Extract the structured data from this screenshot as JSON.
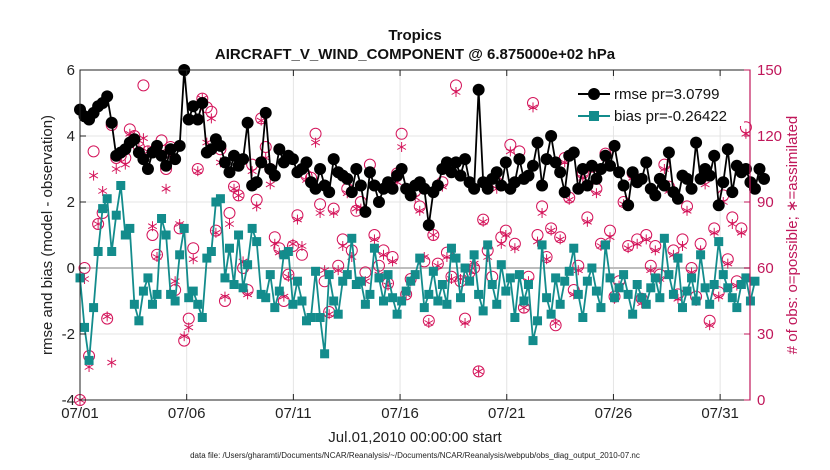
{
  "chart_data": {
    "type": "line",
    "title": "Tropics",
    "subtitle": "AIRCRAFT_V_WIND_COMPONENT @ 6.875000e+02 hPa",
    "xlabel": "Jul.01,2010 00:00:00 start",
    "ylabel": "rmse and bias (model - observation)",
    "y2label": "# of obs: o=possible; ∗=assimilated",
    "footnote": "data file: /Users/gharamti/Documents/NCAR/Reanalysis/~/Documents/NCAR/Reanalysis/webpub/obs_diag_output_2010-07.nc",
    "xlim": [
      0,
      31.4
    ],
    "ylim": [
      -4,
      6
    ],
    "y2lim": [
      0,
      150
    ],
    "x_ticks": [
      0,
      5,
      10,
      15,
      20,
      25,
      30
    ],
    "x_tick_labels": [
      "07/01",
      "07/06",
      "07/11",
      "07/16",
      "07/21",
      "07/26",
      "07/31"
    ],
    "y_ticks": [
      -4,
      -2,
      0,
      2,
      4,
      6
    ],
    "y_tick_labels": [
      "-4",
      "-2",
      "0",
      "2",
      "4",
      "6"
    ],
    "y2_ticks": [
      0,
      30,
      60,
      90,
      120,
      150
    ],
    "y2_tick_labels": [
      "0",
      "30",
      "60",
      "90",
      "120",
      "150"
    ],
    "series": [
      {
        "name": "rmse pr=3.0799",
        "color": "#000000",
        "marker": "circle",
        "values": [
          4.8,
          4.6,
          4.5,
          4.7,
          4.9,
          5.0,
          5.2,
          4.4,
          3.4,
          3.5,
          3.6,
          3.8,
          3.9,
          3.5,
          3.3,
          3.0,
          3.5,
          3.7,
          3.4,
          3.1,
          3.6,
          3.3,
          3.7,
          6.0,
          4.5,
          4.9,
          4.5,
          5.0,
          3.5,
          3.6,
          3.9,
          3.7,
          3.2,
          2.9,
          3.4,
          3.1,
          3.3,
          4.4,
          2.5,
          2.6,
          3.2,
          4.7,
          3.0,
          2.8,
          3.6,
          3.2,
          3.4,
          3.3,
          2.9,
          3.0,
          3.2,
          2.6,
          2.4,
          3.0,
          2.5,
          2.3,
          3.3,
          2.9,
          2.8,
          2.7,
          2.3,
          3.0,
          2.5,
          1.7,
          2.9,
          2.5,
          2.0,
          2.4,
          2.6,
          2.4,
          2.8,
          3.0,
          2.4,
          2.2,
          2.5,
          2.6,
          2.4,
          1.3,
          2.3,
          2.5,
          3.0,
          3.2,
          2.9,
          3.2,
          2.8,
          3.3,
          2.6,
          2.4,
          5.4,
          2.6,
          2.4,
          2.7,
          2.9,
          2.5,
          3.2,
          2.4,
          2.6,
          3.3,
          2.7,
          2.8,
          3.1,
          3.8,
          2.5,
          3.3,
          4.0,
          3.2,
          2.9,
          2.3,
          3.4,
          3.5,
          2.4,
          3.0,
          2.5,
          3.1,
          2.7,
          3.0,
          3.4,
          3.1,
          3.7,
          2.9,
          2.5,
          1.9,
          2.9,
          2.6,
          2.7,
          3.2,
          2.4,
          2.2,
          2.7,
          2.5,
          3.5,
          2.3,
          2.1,
          2.8,
          2.7,
          2.4,
          3.8,
          2.7,
          3.0,
          2.8,
          3.4,
          1.9,
          2.6,
          3.6,
          2.3,
          3.1,
          2.9,
          3.0,
          2.6,
          2.4,
          3.0,
          2.7
        ],
        "x_start": 0,
        "x_step": 0.2123
      },
      {
        "name": "bias pr=-0.26422",
        "color": "#138c8c",
        "marker": "square",
        "values": [
          -0.3,
          -1.8,
          -2.8,
          -1.2,
          0.5,
          1.8,
          2.1,
          0.5,
          1.6,
          2.5,
          1.0,
          1.2,
          -1.1,
          -1.6,
          -0.7,
          -0.3,
          -1.1,
          -0.8,
          1.5,
          1.0,
          -0.8,
          -1.0,
          0.4,
          1.2,
          -0.9,
          -0.7,
          -1.1,
          -1.5,
          0.3,
          0.5,
          2.0,
          2.1,
          -0.3,
          0.6,
          -0.5,
          1.0,
          -0.6,
          0.1,
          1.2,
          0.8,
          -0.8,
          -0.9,
          -0.2,
          -1.2,
          -0.7,
          0.4,
          0.5,
          -1.1,
          -0.4,
          -1.0,
          -1.6,
          -1.5,
          -0.1,
          -1.5,
          -2.6,
          -0.2,
          -1.0,
          -1.4,
          -0.4,
          -0.2,
          0.9,
          -0.5,
          -0.4,
          -1.1,
          -0.8,
          0.6,
          -0.3,
          -1.0,
          -0.2,
          -0.9,
          -1.4,
          -1.0,
          -0.7,
          -0.4,
          -0.2,
          0.3,
          -1.2,
          -0.8,
          -0.1,
          -1.0,
          -0.5,
          -1.1,
          0.6,
          0.3,
          -0.9,
          0.0,
          -0.4,
          0.4,
          -0.8,
          -1.3,
          0.7,
          -0.5,
          -1.1,
          0.1,
          -0.7,
          -0.3,
          -1.5,
          -0.2,
          -1.0,
          -0.5,
          -2.2,
          -1.6,
          0.7,
          -0.9,
          -1.4,
          -0.3,
          -1.1,
          -0.4,
          -0.1,
          0.6,
          -0.8,
          -1.5,
          -0.4,
          0.0,
          -0.7,
          -1.2,
          0.7,
          -0.3,
          -0.9,
          -0.6,
          -0.2,
          -0.8,
          -1.4,
          -0.5,
          -0.9,
          -1.1,
          -0.6,
          -0.3,
          -0.9,
          0.9,
          -0.2,
          -0.8,
          0.3,
          -1.2,
          -0.7,
          -0.3,
          -1.0,
          0.4,
          -0.6,
          -1.1,
          -0.5,
          0.8,
          -0.2,
          -0.6,
          -0.9,
          -1.2,
          -0.5,
          -0.3,
          -1.0,
          -0.4
        ],
        "x_start": 0,
        "x_step": 0.2123
      },
      {
        "name": "obs possible",
        "axis": "right",
        "color": "#d4145a",
        "marker": "open-circle",
        "values": [
          0,
          60,
          20,
          113,
          80,
          85,
          37,
          125,
          110,
          111,
          110,
          123,
          120,
          115,
          143,
          113,
          75,
          66,
          118,
          105,
          115,
          50,
          78,
          27,
          37,
          69,
          105,
          137,
          133,
          131,
          77,
          114,
          45,
          85,
          97,
          93,
          60,
          50,
          107,
          91,
          128,
          115,
          105,
          74,
          69,
          45,
          57,
          70,
          84,
          66,
          102,
          101,
          121,
          89,
          54,
          40,
          87,
          61,
          73,
          96,
          68,
          86,
          90,
          58,
          107,
          75,
          61,
          68,
          53,
          65,
          103,
          121,
          48,
          55,
          95,
          88,
          63,
          36,
          75,
          62,
          99,
          67,
          56,
          143,
          54,
          37,
          58,
          60,
          13,
          82,
          68,
          56,
          99,
          74,
          77,
          116,
          71,
          113,
          42,
          56,
          135,
          75,
          88,
          65,
          78,
          34,
          74,
          110,
          92,
          50,
          61,
          103,
          83,
          106,
          96,
          71,
          112,
          77,
          47,
          54,
          90,
          70,
          103,
          73,
          46,
          75,
          61,
          70,
          57,
          107,
          97,
          68,
          48,
          73,
          88,
          60,
          47,
          71,
          102,
          36,
          78,
          49,
          93,
          64,
          83,
          54,
          78,
          124
        ],
        "x_start": 0,
        "x_step": 0.2123
      },
      {
        "name": "obs assimilated",
        "axis": "right",
        "color": "#d4145a",
        "marker": "asterisk",
        "values": [
          0,
          55,
          15,
          102,
          80,
          95,
          38,
          17,
          105,
          113,
          107,
          121,
          118,
          115,
          119,
          113,
          79,
          65,
          113,
          96,
          111,
          54,
          80,
          29,
          33,
          64,
          104,
          137,
          117,
          128,
          76,
          108,
          47,
          80,
          96,
          93,
          63,
          48,
          104,
          88,
          127,
          110,
          98,
          71,
          67,
          47,
          56,
          71,
          82,
          70,
          100,
          99,
          117,
          85,
          59,
          39,
          85,
          59,
          70,
          94,
          65,
          87,
          87,
          54,
          103,
          73,
          57,
          66,
          52,
          63,
          99,
          115,
          48,
          54,
          92,
          86,
          65,
          35,
          75,
          61,
          97,
          65,
          55,
          140,
          55,
          35,
          59,
          62,
          13,
          81,
          65,
          53,
          96,
          71,
          75,
          113,
          69,
          110,
          42,
          54,
          133,
          72,
          85,
          64,
          77,
          35,
          73,
          108,
          91,
          48,
          59,
          101,
          81,
          106,
          94,
          70,
          110,
          74,
          46,
          52,
          89,
          69,
          101,
          71,
          44,
          73,
          59,
          68,
          55,
          105,
          95,
          66,
          46,
          70,
          86,
          58,
          45,
          68,
          98,
          34,
          76,
          47,
          90,
          62,
          80,
          52,
          76,
          121
        ],
        "x_start": 0,
        "x_step": 0.2123
      }
    ],
    "legend": [
      {
        "label": "rmse pr=3.0799",
        "color": "#000000",
        "marker": "circle"
      },
      {
        "label": "bias pr=-0.26422",
        "color": "#138c8c",
        "marker": "square"
      }
    ],
    "legend_position": "top-right",
    "grid": true
  }
}
